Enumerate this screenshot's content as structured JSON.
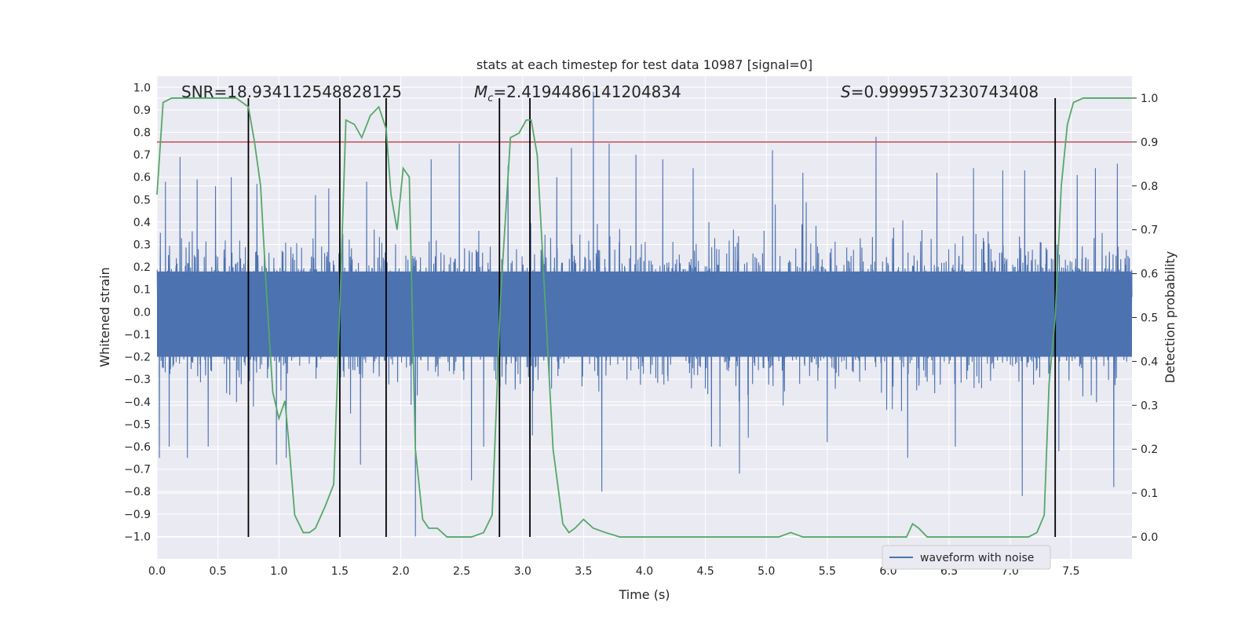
{
  "chart_data": {
    "type": "line",
    "title": "stats at each timestep for test data 10987 [signal=0]",
    "xlabel": "Time (s)",
    "ylabel_left": "Whitened strain",
    "ylabel_right": "Detection probability",
    "xlim": [
      0,
      8.0
    ],
    "ylim_left": [
      -1.1,
      1.05
    ],
    "ylim_right": [
      -0.05,
      1.05
    ],
    "grid": true,
    "x_ticks": [
      0.0,
      0.5,
      1.0,
      1.5,
      2.0,
      2.5,
      3.0,
      3.5,
      4.0,
      4.5,
      5.0,
      5.5,
      6.0,
      6.5,
      7.0,
      7.5
    ],
    "x_tick_labels": [
      "0.0",
      "0.5",
      "1.0",
      "1.5",
      "2.0",
      "2.5",
      "3.0",
      "3.5",
      "4.0",
      "4.5",
      "5.0",
      "5.5",
      "6.0",
      "6.5",
      "7.0",
      "7.5"
    ],
    "y_left_ticks": [
      -1.0,
      -0.9,
      -0.8,
      -0.7,
      -0.6,
      -0.5,
      -0.4,
      -0.3,
      -0.2,
      -0.1,
      0.0,
      0.1,
      0.2,
      0.3,
      0.4,
      0.5,
      0.6,
      0.7,
      0.8,
      0.9,
      1.0
    ],
    "y_left_tick_labels": [
      "−1.0",
      "−0.9",
      "−0.8",
      "−0.7",
      "−0.6",
      "−0.5",
      "−0.4",
      "−0.3",
      "−0.2",
      "−0.1",
      "0.0",
      "0.1",
      "0.2",
      "0.3",
      "0.4",
      "0.5",
      "0.6",
      "0.7",
      "0.8",
      "0.9",
      "1.0"
    ],
    "y_right_ticks": [
      0.0,
      0.1,
      0.2,
      0.3,
      0.4,
      0.5,
      0.6,
      0.7,
      0.8,
      0.9,
      1.0
    ],
    "y_right_tick_labels": [
      "0.0",
      "0.1",
      "0.2",
      "0.3",
      "0.4",
      "0.5",
      "0.6",
      "0.7",
      "0.8",
      "0.9",
      "1.0"
    ],
    "annotations": {
      "snr": "SNR=18.934112548828125",
      "mc_symbol": "M",
      "mc_subscript": "c",
      "mc_value": "=2.4194486141204834",
      "s_symbol": "S",
      "s_value": "=0.9999573230743408"
    },
    "legend": {
      "label": "waveform with noise",
      "placement": "bottom-right"
    },
    "threshold": {
      "axis": "right",
      "value": 0.9
    },
    "vertical_markers": [
      0.75,
      1.5,
      1.88,
      2.81,
      3.06,
      7.37
    ],
    "noise_series": {
      "name": "waveform with noise",
      "seed": 10987,
      "peaks": [
        {
          "t": 0.02,
          "v": -0.65
        },
        {
          "t": 0.07,
          "v": 0.58
        },
        {
          "t": 0.1,
          "v": -0.6
        },
        {
          "t": 0.19,
          "v": 0.69
        },
        {
          "t": 0.25,
          "v": -0.65
        },
        {
          "t": 0.33,
          "v": 0.59
        },
        {
          "t": 0.42,
          "v": -0.6
        },
        {
          "t": 0.48,
          "v": 0.56
        },
        {
          "t": 0.61,
          "v": 0.6
        },
        {
          "t": 0.75,
          "v": -0.65
        },
        {
          "t": 0.82,
          "v": 0.57
        },
        {
          "t": 0.98,
          "v": -0.68
        },
        {
          "t": 1.06,
          "v": -0.65
        },
        {
          "t": 1.3,
          "v": 0.52
        },
        {
          "t": 1.41,
          "v": 0.55
        },
        {
          "t": 1.5,
          "v": -0.75
        },
        {
          "t": 1.67,
          "v": -0.68
        },
        {
          "t": 1.72,
          "v": 0.58
        },
        {
          "t": 1.88,
          "v": 0.54
        },
        {
          "t": 2.12,
          "v": -1.0
        },
        {
          "t": 2.25,
          "v": 0.68
        },
        {
          "t": 2.48,
          "v": 0.75
        },
        {
          "t": 2.58,
          "v": -0.75
        },
        {
          "t": 2.68,
          "v": -0.6
        },
        {
          "t": 2.88,
          "v": 0.65
        },
        {
          "t": 3.08,
          "v": -0.55
        },
        {
          "t": 3.28,
          "v": 0.6
        },
        {
          "t": 3.4,
          "v": 0.73
        },
        {
          "t": 3.58,
          "v": 0.98
        },
        {
          "t": 3.65,
          "v": -0.8
        },
        {
          "t": 3.71,
          "v": 0.75
        },
        {
          "t": 3.93,
          "v": 0.7
        },
        {
          "t": 4.15,
          "v": 0.68
        },
        {
          "t": 4.4,
          "v": 0.64
        },
        {
          "t": 4.55,
          "v": -0.6
        },
        {
          "t": 4.78,
          "v": -0.72
        },
        {
          "t": 5.05,
          "v": 0.72
        },
        {
          "t": 5.3,
          "v": 0.62
        },
        {
          "t": 5.5,
          "v": -0.58
        },
        {
          "t": 5.9,
          "v": 0.78
        },
        {
          "t": 6.16,
          "v": -0.65
        },
        {
          "t": 6.4,
          "v": 0.62
        },
        {
          "t": 6.55,
          "v": -0.6
        },
        {
          "t": 6.7,
          "v": 0.64
        },
        {
          "t": 6.94,
          "v": 0.63
        },
        {
          "t": 7.1,
          "v": -0.82
        },
        {
          "t": 7.12,
          "v": 0.63
        },
        {
          "t": 7.4,
          "v": -0.62
        },
        {
          "t": 7.55,
          "v": 0.61
        },
        {
          "t": 7.7,
          "v": 0.64
        },
        {
          "t": 7.85,
          "v": -0.78
        },
        {
          "t": 7.88,
          "v": 0.66
        }
      ]
    },
    "probability_series": {
      "name": "detection probability",
      "x": [
        0.0,
        0.05,
        0.12,
        0.2,
        0.3,
        0.4,
        0.5,
        0.6,
        0.65,
        0.7,
        0.75,
        0.8,
        0.85,
        0.9,
        0.95,
        1.0,
        1.05,
        1.08,
        1.13,
        1.2,
        1.25,
        1.3,
        1.38,
        1.45,
        1.5,
        1.55,
        1.62,
        1.68,
        1.75,
        1.82,
        1.88,
        1.92,
        1.97,
        2.02,
        2.07,
        2.12,
        2.18,
        2.23,
        2.3,
        2.38,
        2.48,
        2.58,
        2.68,
        2.75,
        2.82,
        2.9,
        2.97,
        3.03,
        3.07,
        3.12,
        3.18,
        3.25,
        3.33,
        3.38,
        3.43,
        3.5,
        3.58,
        3.68,
        3.8,
        3.9,
        4.0,
        4.5,
        5.0,
        5.1,
        5.2,
        5.3,
        5.5,
        5.8,
        5.9,
        6.0,
        6.1,
        6.15,
        6.2,
        6.25,
        6.32,
        6.4,
        6.6,
        6.8,
        7.0,
        7.15,
        7.22,
        7.28,
        7.32,
        7.37,
        7.42,
        7.47,
        7.52,
        7.6,
        8.0
      ],
      "y": [
        0.78,
        0.99,
        1.0,
        1.0,
        1.0,
        1.0,
        1.0,
        1.0,
        1.0,
        0.99,
        0.98,
        0.9,
        0.8,
        0.55,
        0.33,
        0.27,
        0.31,
        0.22,
        0.05,
        0.01,
        0.01,
        0.02,
        0.07,
        0.12,
        0.52,
        0.95,
        0.94,
        0.91,
        0.96,
        0.98,
        0.93,
        0.78,
        0.7,
        0.84,
        0.82,
        0.2,
        0.04,
        0.02,
        0.02,
        0.0,
        0.0,
        0.0,
        0.01,
        0.05,
        0.55,
        0.91,
        0.92,
        0.95,
        0.95,
        0.87,
        0.56,
        0.2,
        0.03,
        0.01,
        0.02,
        0.04,
        0.02,
        0.01,
        0.0,
        0.0,
        0.0,
        0.0,
        0.0,
        0.0,
        0.01,
        0.0,
        0.0,
        0.0,
        0.0,
        0.0,
        0.0,
        0.0,
        0.03,
        0.02,
        0.0,
        0.0,
        0.0,
        0.0,
        0.0,
        0.0,
        0.01,
        0.05,
        0.35,
        0.5,
        0.8,
        0.94,
        0.99,
        1.0,
        1.0
      ]
    }
  }
}
